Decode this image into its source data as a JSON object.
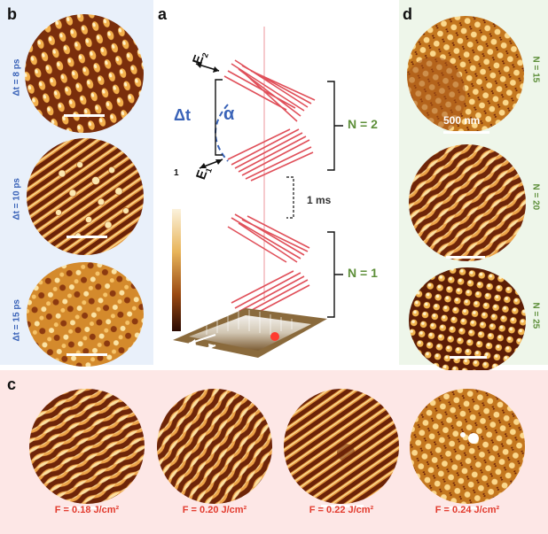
{
  "panels": {
    "a": {
      "label": "a"
    },
    "b": {
      "label": "b",
      "delays": [
        "Δt = 8 ps",
        "Δt = 10 ps",
        "Δt = 15 ps"
      ]
    },
    "c": {
      "label": "c",
      "fluences": [
        "F = 0.18 J/cm²",
        "F = 0.20 J/cm²",
        "F = 0.22 J/cm²",
        "F = 0.24 J/cm²"
      ]
    },
    "d": {
      "label": "d",
      "pulses": [
        "N = 15",
        "N = 20",
        "N = 25"
      ],
      "scale_bar": "500 nm"
    }
  },
  "schematic": {
    "delta_t": "Δt",
    "alpha": "α",
    "e2": "E",
    "e2_sub": "2",
    "e1": "E",
    "e1_sub": "1",
    "pulse_pair_label": "N = 2",
    "gap_label": "1 ms",
    "single_label": "N = 1",
    "colorbar_top": "1"
  },
  "colors": {
    "stripe_dark": "#6b2308",
    "stripe_light": "#f6c46a",
    "pulse": "#e0505a",
    "blue": "#3a63b8",
    "green": "#5e8f3a",
    "red": "#e23b2e"
  }
}
